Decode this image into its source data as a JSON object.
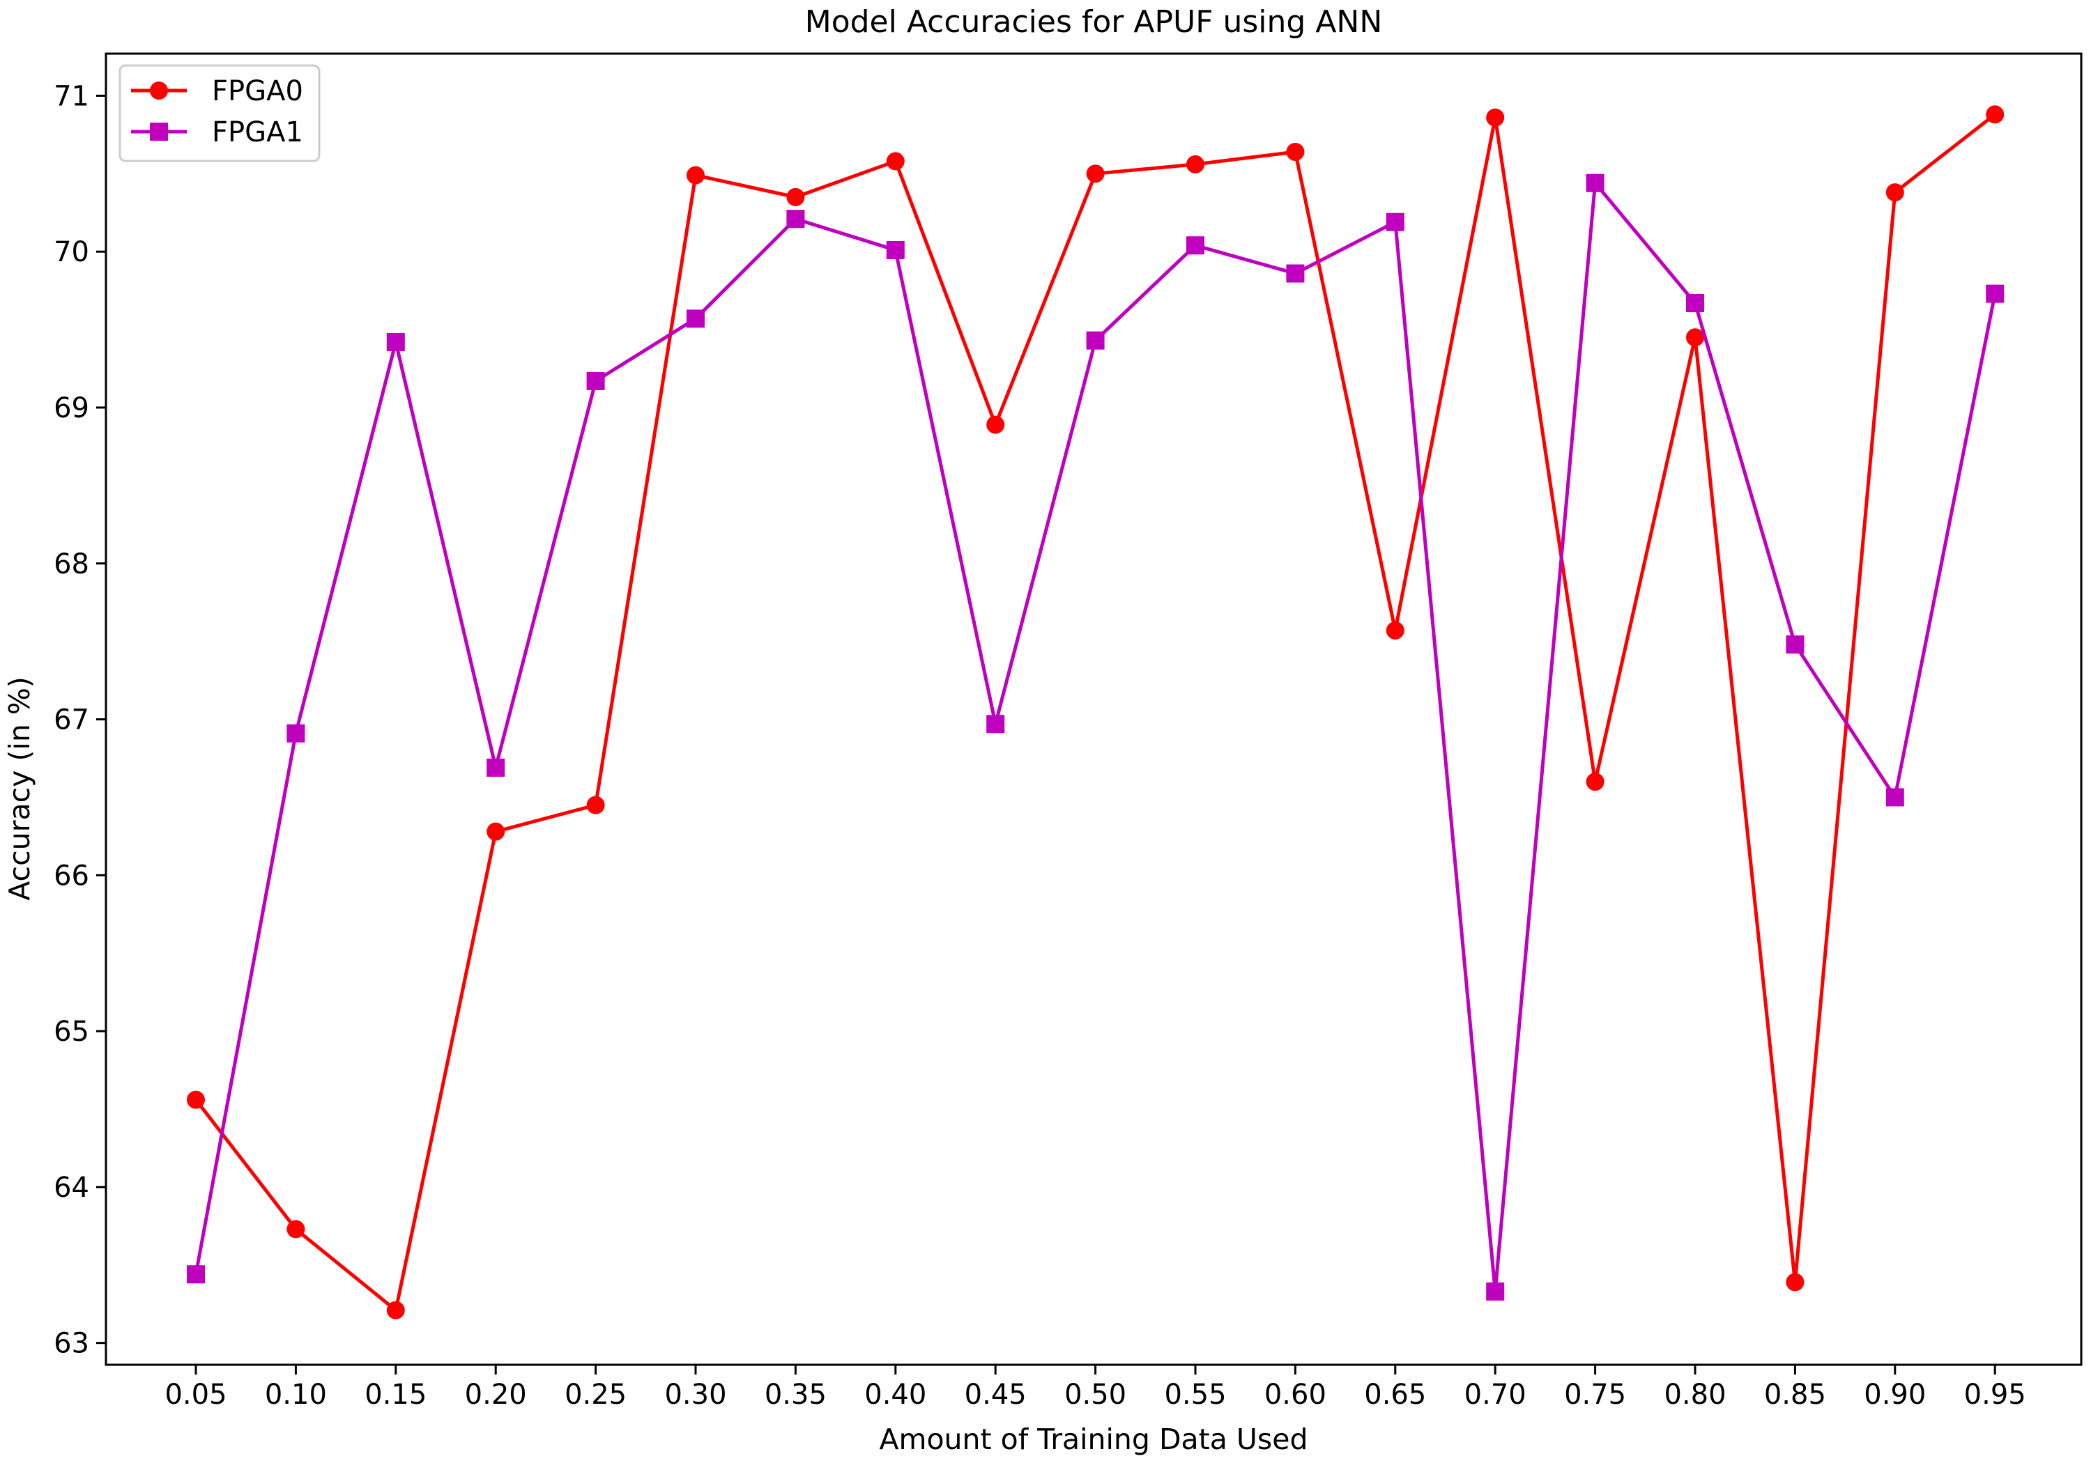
{
  "chart_data": {
    "type": "line",
    "title": "Model Accuracies for APUF using ANN",
    "xlabel": "Amount of Training Data Used",
    "ylabel": "Accuracy (in %)",
    "x": [
      "0.05",
      "0.10",
      "0.15",
      "0.20",
      "0.25",
      "0.30",
      "0.35",
      "0.40",
      "0.45",
      "0.50",
      "0.55",
      "0.60",
      "0.65",
      "0.70",
      "0.75",
      "0.80",
      "0.85",
      "0.90",
      "0.95"
    ],
    "yticks": [
      "63",
      "64",
      "65",
      "66",
      "67",
      "68",
      "69",
      "70",
      "71"
    ],
    "ylim": [
      62.86,
      71.27
    ],
    "grid": false,
    "legend_position": "top-left",
    "series": [
      {
        "name": "FPGA0",
        "color": "#ff0000",
        "marker": "circle",
        "values": [
          64.56,
          63.73,
          63.21,
          66.28,
          66.45,
          70.49,
          70.35,
          70.58,
          68.89,
          70.5,
          70.56,
          70.64,
          67.57,
          70.86,
          66.6,
          69.45,
          63.39,
          70.38,
          70.88
        ]
      },
      {
        "name": "FPGA1",
        "color": "#bf00bf",
        "marker": "square",
        "values": [
          63.44,
          66.91,
          69.42,
          66.69,
          69.17,
          69.57,
          70.21,
          70.01,
          66.97,
          69.43,
          70.04,
          69.86,
          70.19,
          63.33,
          70.44,
          69.67,
          67.48,
          66.5,
          69.73
        ]
      }
    ]
  }
}
